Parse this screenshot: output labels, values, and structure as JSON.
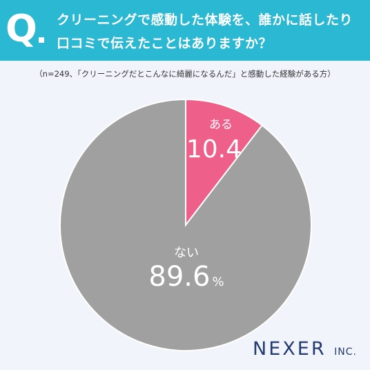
{
  "question": {
    "mark": "Q",
    "line1": "クリーニングで感動した体験を、誰かに話したり",
    "line2": "口コミで伝えたことはありますか？"
  },
  "subtitle": "（n=249、「クリーニングだとこんなに綺麗になるんだ」と感動した経験がある方）",
  "chart_data": {
    "type": "pie",
    "slices": [
      {
        "label": "ある",
        "value": 10.4,
        "display": "10.4",
        "unit": "%",
        "color": "#ee6089"
      },
      {
        "label": "ない",
        "value": 89.6,
        "display": "89.6",
        "unit": "%",
        "color": "#a0a0a0"
      }
    ]
  },
  "logo": {
    "name": "NEXER",
    "suffix": "INC."
  }
}
